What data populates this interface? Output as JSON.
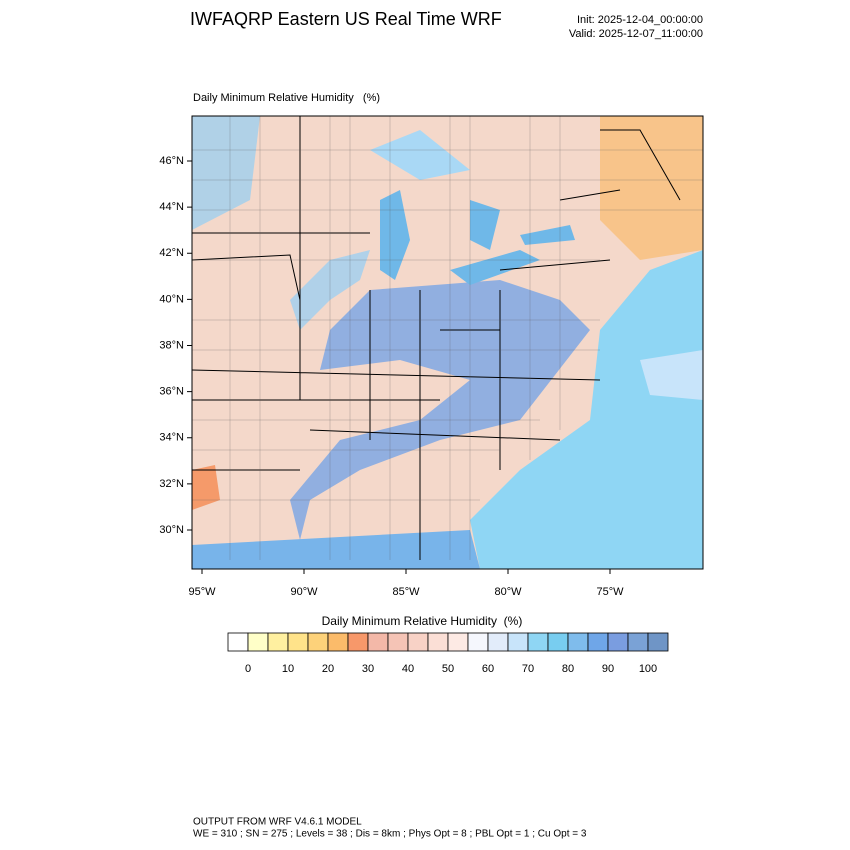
{
  "header": {
    "title": "IWFAQRP Eastern US Real Time WRF",
    "init": "Init: 2025-12-04_00:00:00",
    "valid": "Valid: 2025-12-07_11:00:00"
  },
  "map": {
    "subtitle": "Daily Minimum Relative Humidity   (%)",
    "lat_labels": [
      "30°N",
      "32°N",
      "34°N",
      "36°N",
      "38°N",
      "40°N",
      "42°N",
      "44°N",
      "46°N"
    ],
    "lon_labels": [
      "95°W",
      "90°W",
      "85°W",
      "80°W",
      "75°W"
    ]
  },
  "colorbar": {
    "title": "Daily Minimum Relative Humidity  (%)",
    "colors": [
      "#ffffff",
      "#ffffc8",
      "#fff0a0",
      "#ffe38a",
      "#fdd27a",
      "#fbbb6a",
      "#f7986a",
      "#f3b8a8",
      "#f5c4b6",
      "#f8d2c6",
      "#fbdfd6",
      "#fdeae4",
      "#f5f7fd",
      "#e2ecfa",
      "#c8e4fa",
      "#8fd6f4",
      "#78cdf0",
      "#7fbcec",
      "#6fa6e8",
      "#7a9de0",
      "#7aa2d6",
      "#6f95c6"
    ],
    "labels": [
      0,
      10,
      20,
      30,
      40,
      50,
      60,
      70,
      80,
      90,
      100
    ]
  },
  "footer": {
    "line1": "OUTPUT FROM WRF V4.6.1 MODEL",
    "line2": "WE = 310 ; SN = 275 ; Levels = 38 ; Dis = 8km ; Phys Opt = 8 ; PBL Opt = 1 ; Cu Opt = 3"
  }
}
